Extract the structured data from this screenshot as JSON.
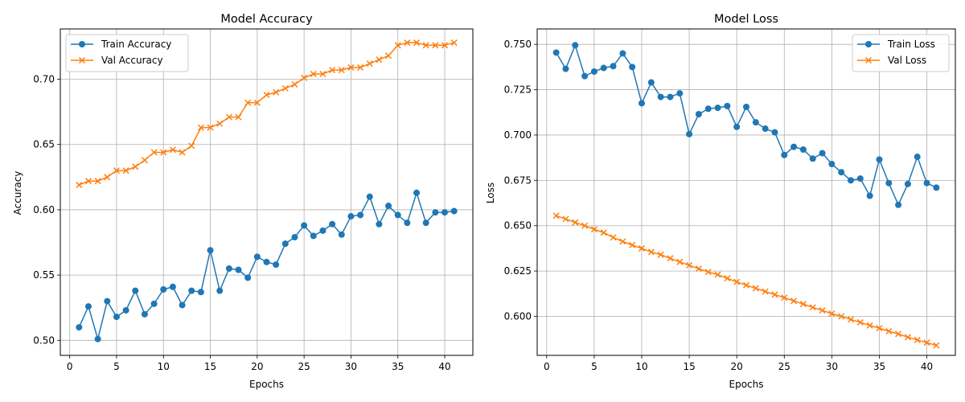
{
  "colors": {
    "train": "#1f77b4",
    "val": "#ff7f0e",
    "grid": "#b0b0b0"
  },
  "chart_data": [
    {
      "type": "line",
      "title": "Model Accuracy",
      "xlabel": "Epochs",
      "ylabel": "Accuracy",
      "xlim": [
        -1,
        43
      ],
      "ylim": [
        0.4885,
        0.7385
      ],
      "xticks": [
        0,
        5,
        10,
        15,
        20,
        25,
        30,
        35,
        40
      ],
      "yticks": [
        0.5,
        0.55,
        0.6,
        0.65,
        0.7
      ],
      "ytick_labels": [
        "0.50",
        "0.55",
        "0.60",
        "0.65",
        "0.70"
      ],
      "grid": true,
      "legend": "upper-left",
      "x": [
        1,
        2,
        3,
        4,
        5,
        6,
        7,
        8,
        9,
        10,
        11,
        12,
        13,
        14,
        15,
        16,
        17,
        18,
        19,
        20,
        21,
        22,
        23,
        24,
        25,
        26,
        27,
        28,
        29,
        30,
        31,
        32,
        33,
        34,
        35,
        36,
        37,
        38,
        39,
        40,
        41
      ],
      "series": [
        {
          "name": "Train Accuracy",
          "marker": "circle",
          "values": [
            0.51,
            0.526,
            0.501,
            0.53,
            0.518,
            0.523,
            0.538,
            0.52,
            0.528,
            0.539,
            0.541,
            0.527,
            0.538,
            0.537,
            0.569,
            0.538,
            0.555,
            0.554,
            0.548,
            0.564,
            0.56,
            0.558,
            0.574,
            0.579,
            0.588,
            0.58,
            0.584,
            0.589,
            0.581,
            0.595,
            0.596,
            0.61,
            0.589,
            0.603,
            0.596,
            0.59,
            0.613,
            0.59,
            0.598,
            0.598,
            0.599
          ]
        },
        {
          "name": "Val Accuracy",
          "marker": "x",
          "values": [
            0.619,
            0.622,
            0.622,
            0.625,
            0.63,
            0.63,
            0.633,
            0.638,
            0.644,
            0.644,
            0.646,
            0.644,
            0.649,
            0.663,
            0.663,
            0.666,
            0.671,
            0.671,
            0.682,
            0.682,
            0.688,
            0.69,
            0.693,
            0.696,
            0.701,
            0.704,
            0.704,
            0.707,
            0.707,
            0.709,
            0.709,
            0.712,
            0.715,
            0.718,
            0.726,
            0.728,
            0.728,
            0.726,
            0.726,
            0.726,
            0.728
          ]
        }
      ]
    },
    {
      "type": "line",
      "title": "Model Loss",
      "xlabel": "Epochs",
      "ylabel": "Loss",
      "xlim": [
        -1,
        43
      ],
      "ylim": [
        0.5785,
        0.7585
      ],
      "xticks": [
        0,
        5,
        10,
        15,
        20,
        25,
        30,
        35,
        40
      ],
      "yticks": [
        0.6,
        0.625,
        0.65,
        0.675,
        0.7,
        0.725,
        0.75
      ],
      "ytick_labels": [
        "0.600",
        "0.625",
        "0.650",
        "0.675",
        "0.700",
        "0.725",
        "0.750"
      ],
      "grid": true,
      "legend": "upper-right",
      "x": [
        1,
        2,
        3,
        4,
        5,
        6,
        7,
        8,
        9,
        10,
        11,
        12,
        13,
        14,
        15,
        16,
        17,
        18,
        19,
        20,
        21,
        22,
        23,
        24,
        25,
        26,
        27,
        28,
        29,
        30,
        31,
        32,
        33,
        34,
        35,
        36,
        37,
        38,
        39,
        40,
        41
      ],
      "series": [
        {
          "name": "Train Loss",
          "marker": "circle",
          "values": [
            0.7455,
            0.7365,
            0.7495,
            0.7325,
            0.735,
            0.737,
            0.738,
            0.745,
            0.7375,
            0.7175,
            0.729,
            0.721,
            0.721,
            0.723,
            0.7005,
            0.7115,
            0.7145,
            0.715,
            0.716,
            0.7045,
            0.7155,
            0.707,
            0.7035,
            0.7015,
            0.689,
            0.6935,
            0.692,
            0.687,
            0.69,
            0.684,
            0.6795,
            0.675,
            0.676,
            0.6665,
            0.6865,
            0.6735,
            0.6615,
            0.673,
            0.688,
            0.6735,
            0.671
          ]
        },
        {
          "name": "Val Loss",
          "marker": "x",
          "values": [
            0.6555,
            0.6537,
            0.6518,
            0.65,
            0.648,
            0.6462,
            0.6435,
            0.6413,
            0.6393,
            0.6375,
            0.6355,
            0.634,
            0.632,
            0.63,
            0.6282,
            0.6263,
            0.6245,
            0.623,
            0.621,
            0.619,
            0.6172,
            0.6155,
            0.6137,
            0.612,
            0.6103,
            0.6085,
            0.6068,
            0.605,
            0.6033,
            0.6015,
            0.6,
            0.5983,
            0.5967,
            0.595,
            0.5935,
            0.5918,
            0.5903,
            0.5885,
            0.587,
            0.5855,
            0.584
          ]
        }
      ]
    }
  ]
}
